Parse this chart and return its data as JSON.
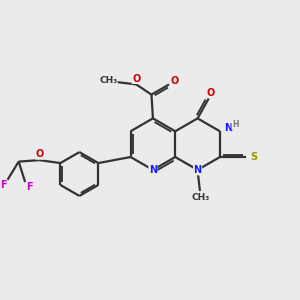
{
  "bg_color": "#ebebeb",
  "bond_color": "#333333",
  "bond_width": 1.6,
  "atom_colors": {
    "C": "#333333",
    "N": "#1a1aff",
    "O": "#cc0000",
    "F": "#cc00cc",
    "S": "#999900",
    "H": "#777777"
  },
  "font_size": 7.0,
  "fig_size": [
    3.0,
    3.0
  ],
  "dpi": 100
}
